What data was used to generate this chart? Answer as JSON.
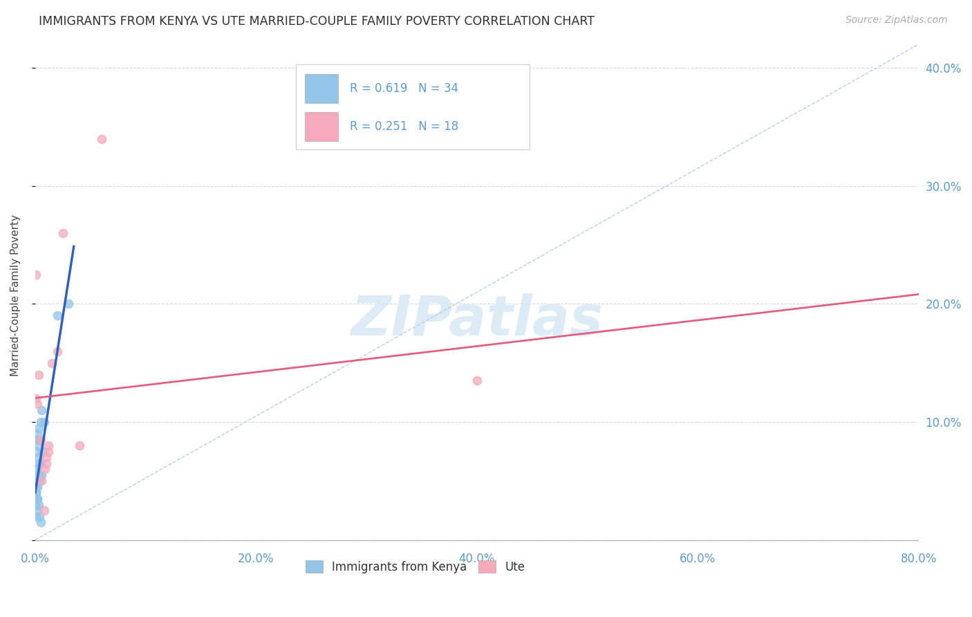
{
  "title": "IMMIGRANTS FROM KENYA VS UTE MARRIED-COUPLE FAMILY POVERTY CORRELATION CHART",
  "source": "Source: ZipAtlas.com",
  "ylabel": "Married-Couple Family Poverty",
  "xlim": [
    0.0,
    0.8
  ],
  "ylim": [
    -0.005,
    0.42
  ],
  "xticks": [
    0.0,
    0.2,
    0.4,
    0.6,
    0.8
  ],
  "xtick_labels": [
    "0.0%",
    "20.0%",
    "40.0%",
    "60.0%",
    "80.0%"
  ],
  "yticks": [
    0.0,
    0.1,
    0.2,
    0.3,
    0.4
  ],
  "ytick_labels": [
    "",
    "10.0%",
    "20.0%",
    "30.0%",
    "40.0%"
  ],
  "kenya_scatter_x": [
    0.001,
    0.002,
    0.001,
    0.003,
    0.002,
    0.001,
    0.004,
    0.003,
    0.002,
    0.001,
    0.003,
    0.002,
    0.001,
    0.005,
    0.006,
    0.002,
    0.003,
    0.004,
    0.001,
    0.002,
    0.003,
    0.002,
    0.001,
    0.006,
    0.005,
    0.007,
    0.003,
    0.002,
    0.008,
    0.001,
    0.004,
    0.005,
    0.02,
    0.03
  ],
  "kenya_scatter_y": [
    0.04,
    0.05,
    0.06,
    0.07,
    0.035,
    0.045,
    0.055,
    0.065,
    0.025,
    0.03,
    0.08,
    0.09,
    0.075,
    0.1,
    0.11,
    0.085,
    0.095,
    0.05,
    0.04,
    0.06,
    0.03,
    0.035,
    0.02,
    0.055,
    0.065,
    0.075,
    0.085,
    0.045,
    0.1,
    0.035,
    0.02,
    0.015,
    0.19,
    0.2
  ],
  "ute_scatter_x": [
    0.001,
    0.002,
    0.003,
    0.005,
    0.006,
    0.008,
    0.009,
    0.01,
    0.01,
    0.012,
    0.012,
    0.015,
    0.02,
    0.025,
    0.04,
    0.06,
    0.4,
    0.001
  ],
  "ute_scatter_y": [
    0.225,
    0.115,
    0.14,
    0.085,
    0.05,
    0.025,
    0.06,
    0.065,
    0.07,
    0.075,
    0.08,
    0.15,
    0.16,
    0.26,
    0.08,
    0.34,
    0.135,
    0.12
  ],
  "kenya_color": "#93C5E8",
  "ute_color": "#F4AABB",
  "kenya_line_color": "#3060C0",
  "ute_line_color": "#E06080",
  "diag_line_color": "#B8D0EC",
  "kenya_line_xlim": [
    0.0,
    0.035
  ],
  "ute_line_xlim": [
    0.0,
    0.8
  ],
  "R_kenya": 0.619,
  "N_kenya": 34,
  "R_ute": 0.251,
  "N_ute": 18,
  "marker_size": 75,
  "background_color": "#FFFFFF",
  "grid_color": "#D8D8D8",
  "title_color": "#2F2F2F",
  "label_color": "#5B9BD5",
  "legend_label1": "Immigrants from Kenya",
  "legend_label2": "Ute",
  "watermark": "ZIPatlas",
  "watermark_color": "#D6E8F5"
}
